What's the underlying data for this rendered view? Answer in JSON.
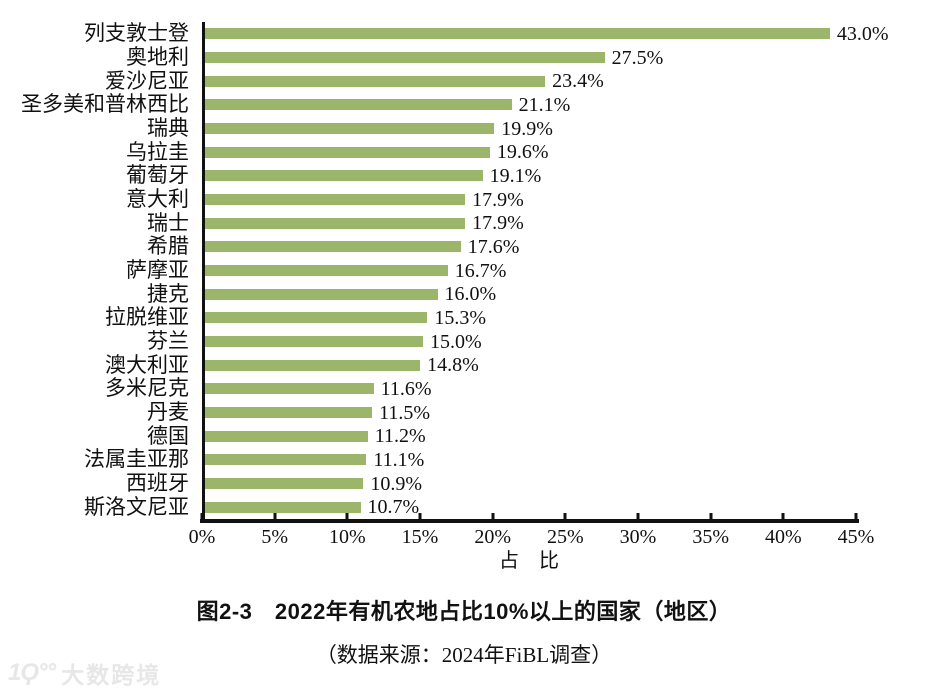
{
  "chart_data": {
    "type": "bar",
    "orientation": "horizontal",
    "categories": [
      "列支敦士登",
      "奥地利",
      "爱沙尼亚",
      "圣多美和普林西比",
      "瑞典",
      "乌拉圭",
      "葡萄牙",
      "意大利",
      "瑞士",
      "希腊",
      "萨摩亚",
      "捷克",
      "拉脱维亚",
      "芬兰",
      "澳大利亚",
      "多米尼克",
      "丹麦",
      "德国",
      "法属圭亚那",
      "西班牙",
      "斯洛文尼亚"
    ],
    "values": [
      43.0,
      27.5,
      23.4,
      21.1,
      19.9,
      19.6,
      19.1,
      17.9,
      17.9,
      17.6,
      16.7,
      16.0,
      15.3,
      15.0,
      14.8,
      11.6,
      11.5,
      11.2,
      11.1,
      10.9,
      10.7
    ],
    "value_labels": [
      "43.0%",
      "27.5%",
      "23.4%",
      "21.1%",
      "19.9%",
      "19.6%",
      "19.1%",
      "17.9%",
      "17.9%",
      "17.6%",
      "16.7%",
      "16.0%",
      "15.3%",
      "15.0%",
      "14.8%",
      "11.6%",
      "11.5%",
      "11.2%",
      "11.1%",
      "10.9%",
      "10.7%"
    ],
    "xticks": [
      "0%",
      "5%",
      "10%",
      "15%",
      "20%",
      "25%",
      "30%",
      "35%",
      "40%",
      "45%"
    ],
    "xlim": [
      0,
      45
    ],
    "xlabel": "占　比",
    "grid": false,
    "legend": "none",
    "bar_color": "#9bb56a",
    "axis_color": "#111111"
  },
  "caption": {
    "title": "图2-3　2022年有机农地占比10%以上的国家（地区）",
    "source": "（数据来源：2024年FiBL调查）"
  },
  "watermark": {
    "logo_mark": "1Ϙ°°",
    "text": "大数跨境"
  }
}
